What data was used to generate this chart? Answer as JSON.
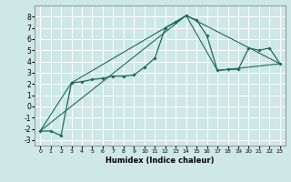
{
  "xlabel": "Humidex (Indice chaleur)",
  "ylabel": "",
  "bg_color": "#cde8e5",
  "grid_color": "#ffffff",
  "line_color": "#1a6b5a",
  "xlim": [
    -0.5,
    23.5
  ],
  "ylim": [
    -3.5,
    9.0
  ],
  "yticks": [
    -3,
    -2,
    -1,
    0,
    1,
    2,
    3,
    4,
    5,
    6,
    7,
    8
  ],
  "xticks": [
    0,
    1,
    2,
    3,
    4,
    5,
    6,
    7,
    8,
    9,
    10,
    11,
    12,
    13,
    14,
    15,
    16,
    17,
    18,
    19,
    20,
    21,
    22,
    23
  ],
  "series1_x": [
    0,
    1,
    2,
    3,
    4,
    5,
    6,
    7,
    8,
    9,
    10,
    11,
    12,
    13,
    14,
    15,
    16,
    17,
    18,
    19,
    20,
    21,
    22,
    23
  ],
  "series1_y": [
    -2.2,
    -2.2,
    -2.6,
    2.1,
    2.2,
    2.4,
    2.5,
    2.7,
    2.7,
    2.8,
    3.5,
    4.3,
    7.0,
    7.5,
    8.1,
    7.7,
    6.3,
    3.2,
    3.3,
    3.3,
    5.2,
    5.0,
    5.2,
    3.8
  ],
  "series2_x": [
    0,
    3,
    14,
    23
  ],
  "series2_y": [
    -2.2,
    2.1,
    8.1,
    3.8
  ],
  "series3_x": [
    0,
    14,
    17,
    23
  ],
  "series3_y": [
    -2.2,
    8.1,
    3.2,
    3.8
  ]
}
